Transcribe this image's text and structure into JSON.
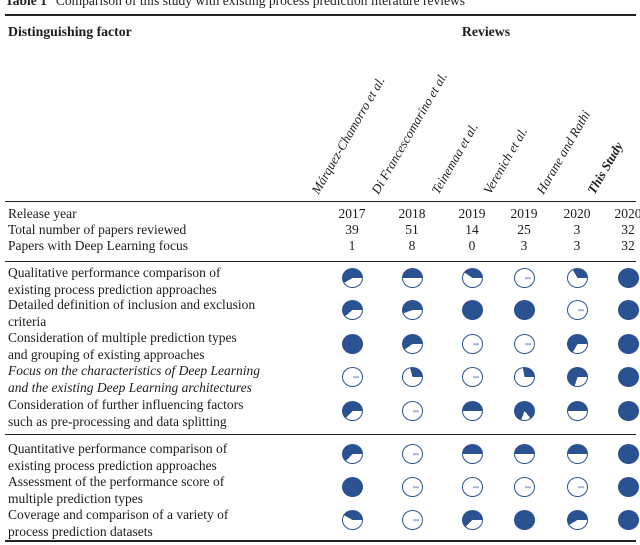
{
  "caption": {
    "label": "Table 1",
    "text": "Comparison of this study with existing process prediction literature reviews"
  },
  "header": {
    "factor": "Distinguishing factor",
    "reviews": "Reviews"
  },
  "columns": [
    {
      "label": "Márquez-Chamorro et al.",
      "bold": false
    },
    {
      "label": "Di Francescomarino et al.",
      "bold": false
    },
    {
      "label": "Teinemaa et al.",
      "bold": false
    },
    {
      "label": "Verenich et al.",
      "bold": false
    },
    {
      "label": "Harane and Rathi",
      "bold": false
    },
    {
      "label": "This Study",
      "bold": true
    }
  ],
  "numeric_rows": [
    {
      "label": "Release year",
      "values": [
        "2017",
        "2018",
        "2019",
        "2019",
        "2020",
        "2020"
      ]
    },
    {
      "label": "Total number of papers reviewed",
      "values": [
        "39",
        "51",
        "14",
        "25",
        "3",
        "32"
      ]
    },
    {
      "label": "Papers with Deep Learning focus",
      "values": [
        "1",
        "8",
        "0",
        "3",
        "3",
        "32"
      ]
    }
  ],
  "sections": [
    {
      "rows": [
        {
          "lines": [
            "Qualitative performance comparison of",
            "existing process prediction approaches"
          ],
          "italic": false,
          "balls": [
            {
              "from": 240,
              "sweep": 210
            },
            {
              "from": 270,
              "sweep": 180
            },
            {
              "from": 305,
              "sweep": 145
            },
            {
              "from": 0,
              "sweep": 0
            },
            {
              "from": 330,
              "sweep": 120
            },
            {
              "from": 0,
              "sweep": 360
            }
          ]
        },
        {
          "lines": [
            "Detailed definition of inclusion and exclusion",
            "criteria"
          ],
          "italic": false,
          "balls": [
            {
              "from": 230,
              "sweep": 220
            },
            {
              "from": 250,
              "sweep": 200
            },
            {
              "from": 0,
              "sweep": 360
            },
            {
              "from": 0,
              "sweep": 360
            },
            {
              "from": 0,
              "sweep": 0
            },
            {
              "from": 0,
              "sweep": 360
            }
          ]
        },
        {
          "lines": [
            "Consideration of multiple prediction types",
            "and grouping of existing approaches"
          ],
          "italic": false,
          "balls": [
            {
              "from": 0,
              "sweep": 360
            },
            {
              "from": 235,
              "sweep": 215
            },
            {
              "from": 0,
              "sweep": 0
            },
            {
              "from": 0,
              "sweep": 0
            },
            {
              "from": 210,
              "sweep": 240
            },
            {
              "from": 0,
              "sweep": 360
            }
          ]
        },
        {
          "lines": [
            "Focus on the characteristics of Deep Learning",
            "and the existing Deep Learning architectures"
          ],
          "italic": true,
          "balls": [
            {
              "from": 0,
              "sweep": 0
            },
            {
              "from": 345,
              "sweep": 105
            },
            {
              "from": 0,
              "sweep": 0
            },
            {
              "from": 350,
              "sweep": 100
            },
            {
              "from": 198,
              "sweep": 252
            },
            {
              "from": 0,
              "sweep": 360
            }
          ]
        },
        {
          "lines": [
            "Consideration of further influencing factors",
            "such as pre-processing and data splitting"
          ],
          "italic": false,
          "balls": [
            {
              "from": 225,
              "sweep": 225
            },
            {
              "from": 0,
              "sweep": 0
            },
            {
              "from": 270,
              "sweep": 180
            },
            {
              "from": 200,
              "sweep": 300
            },
            {
              "from": 270,
              "sweep": 180
            },
            {
              "from": 0,
              "sweep": 360
            }
          ]
        }
      ]
    },
    {
      "rows": [
        {
          "lines": [
            "Quantitative performance comparison of",
            "existing process prediction approaches"
          ],
          "italic": false,
          "balls": [
            {
              "from": 225,
              "sweep": 225
            },
            {
              "from": 0,
              "sweep": 0
            },
            {
              "from": 270,
              "sweep": 180
            },
            {
              "from": 270,
              "sweep": 180
            },
            {
              "from": 270,
              "sweep": 180
            },
            {
              "from": 0,
              "sweep": 360
            }
          ]
        },
        {
          "lines": [
            "Assessment of the performance score of",
            "multiple prediction types"
          ],
          "italic": false,
          "balls": [
            {
              "from": 0,
              "sweep": 360
            },
            {
              "from": 0,
              "sweep": 0
            },
            {
              "from": 0,
              "sweep": 0
            },
            {
              "from": 0,
              "sweep": 0
            },
            {
              "from": 0,
              "sweep": 0
            },
            {
              "from": 0,
              "sweep": 360
            }
          ]
        },
        {
          "lines": [
            "Coverage and comparison of a variety of",
            "process prediction datasets"
          ],
          "italic": false,
          "balls": [
            {
              "from": 300,
              "sweep": 150
            },
            {
              "from": 0,
              "sweep": 0
            },
            {
              "from": 225,
              "sweep": 225
            },
            {
              "from": 0,
              "sweep": 360
            },
            {
              "from": 240,
              "sweep": 210
            },
            {
              "from": 0,
              "sweep": 360
            }
          ]
        }
      ]
    }
  ],
  "colors": {
    "ball_blue": "#2a5190",
    "ink": "#1c1c1c"
  }
}
